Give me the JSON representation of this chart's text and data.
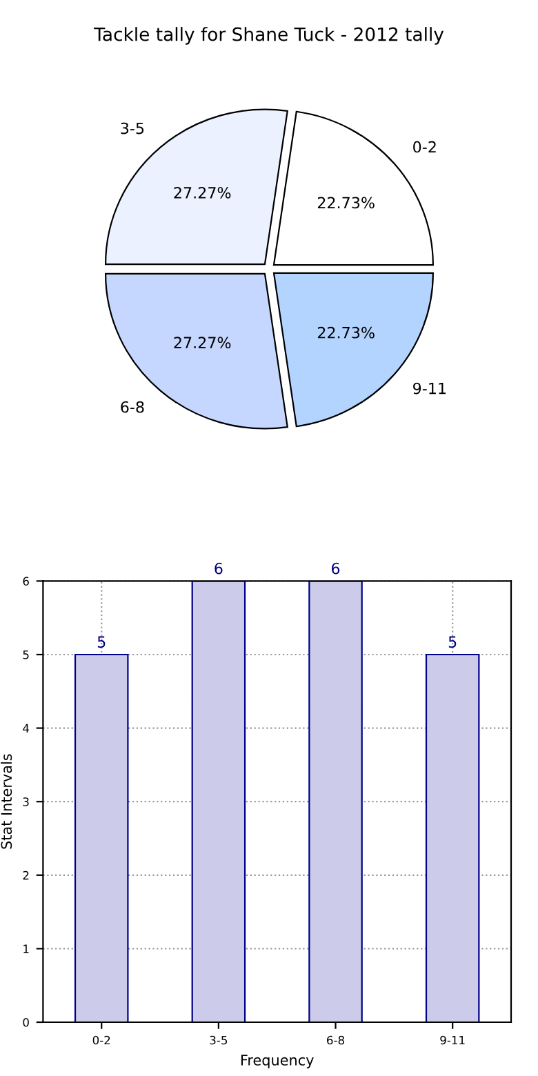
{
  "chart_data": [
    {
      "type": "pie",
      "title": "Tackle tally for Shane Tuck - 2012 tally",
      "categories": [
        "0-2",
        "3-5",
        "6-8",
        "9-11"
      ],
      "values": [
        22.73,
        27.27,
        27.27,
        22.73
      ],
      "colors": [
        "#ffffff",
        "#ebf1ff",
        "#c6d7ff",
        "#b3d4ff"
      ],
      "value_labels": [
        "22.73%",
        "27.27%",
        "27.27%",
        "22.73%"
      ]
    },
    {
      "type": "bar",
      "categories": [
        "0-2",
        "3-5",
        "6-8",
        "9-11"
      ],
      "values": [
        5,
        6,
        6,
        5
      ],
      "color": "#ccccea",
      "xlabel": "Frequency",
      "ylabel": "Stat Intervals",
      "ylim": [
        0,
        6
      ],
      "yticks": [
        0,
        1,
        2,
        3,
        4,
        5,
        6
      ],
      "grid": true,
      "data_labels": true
    }
  ]
}
